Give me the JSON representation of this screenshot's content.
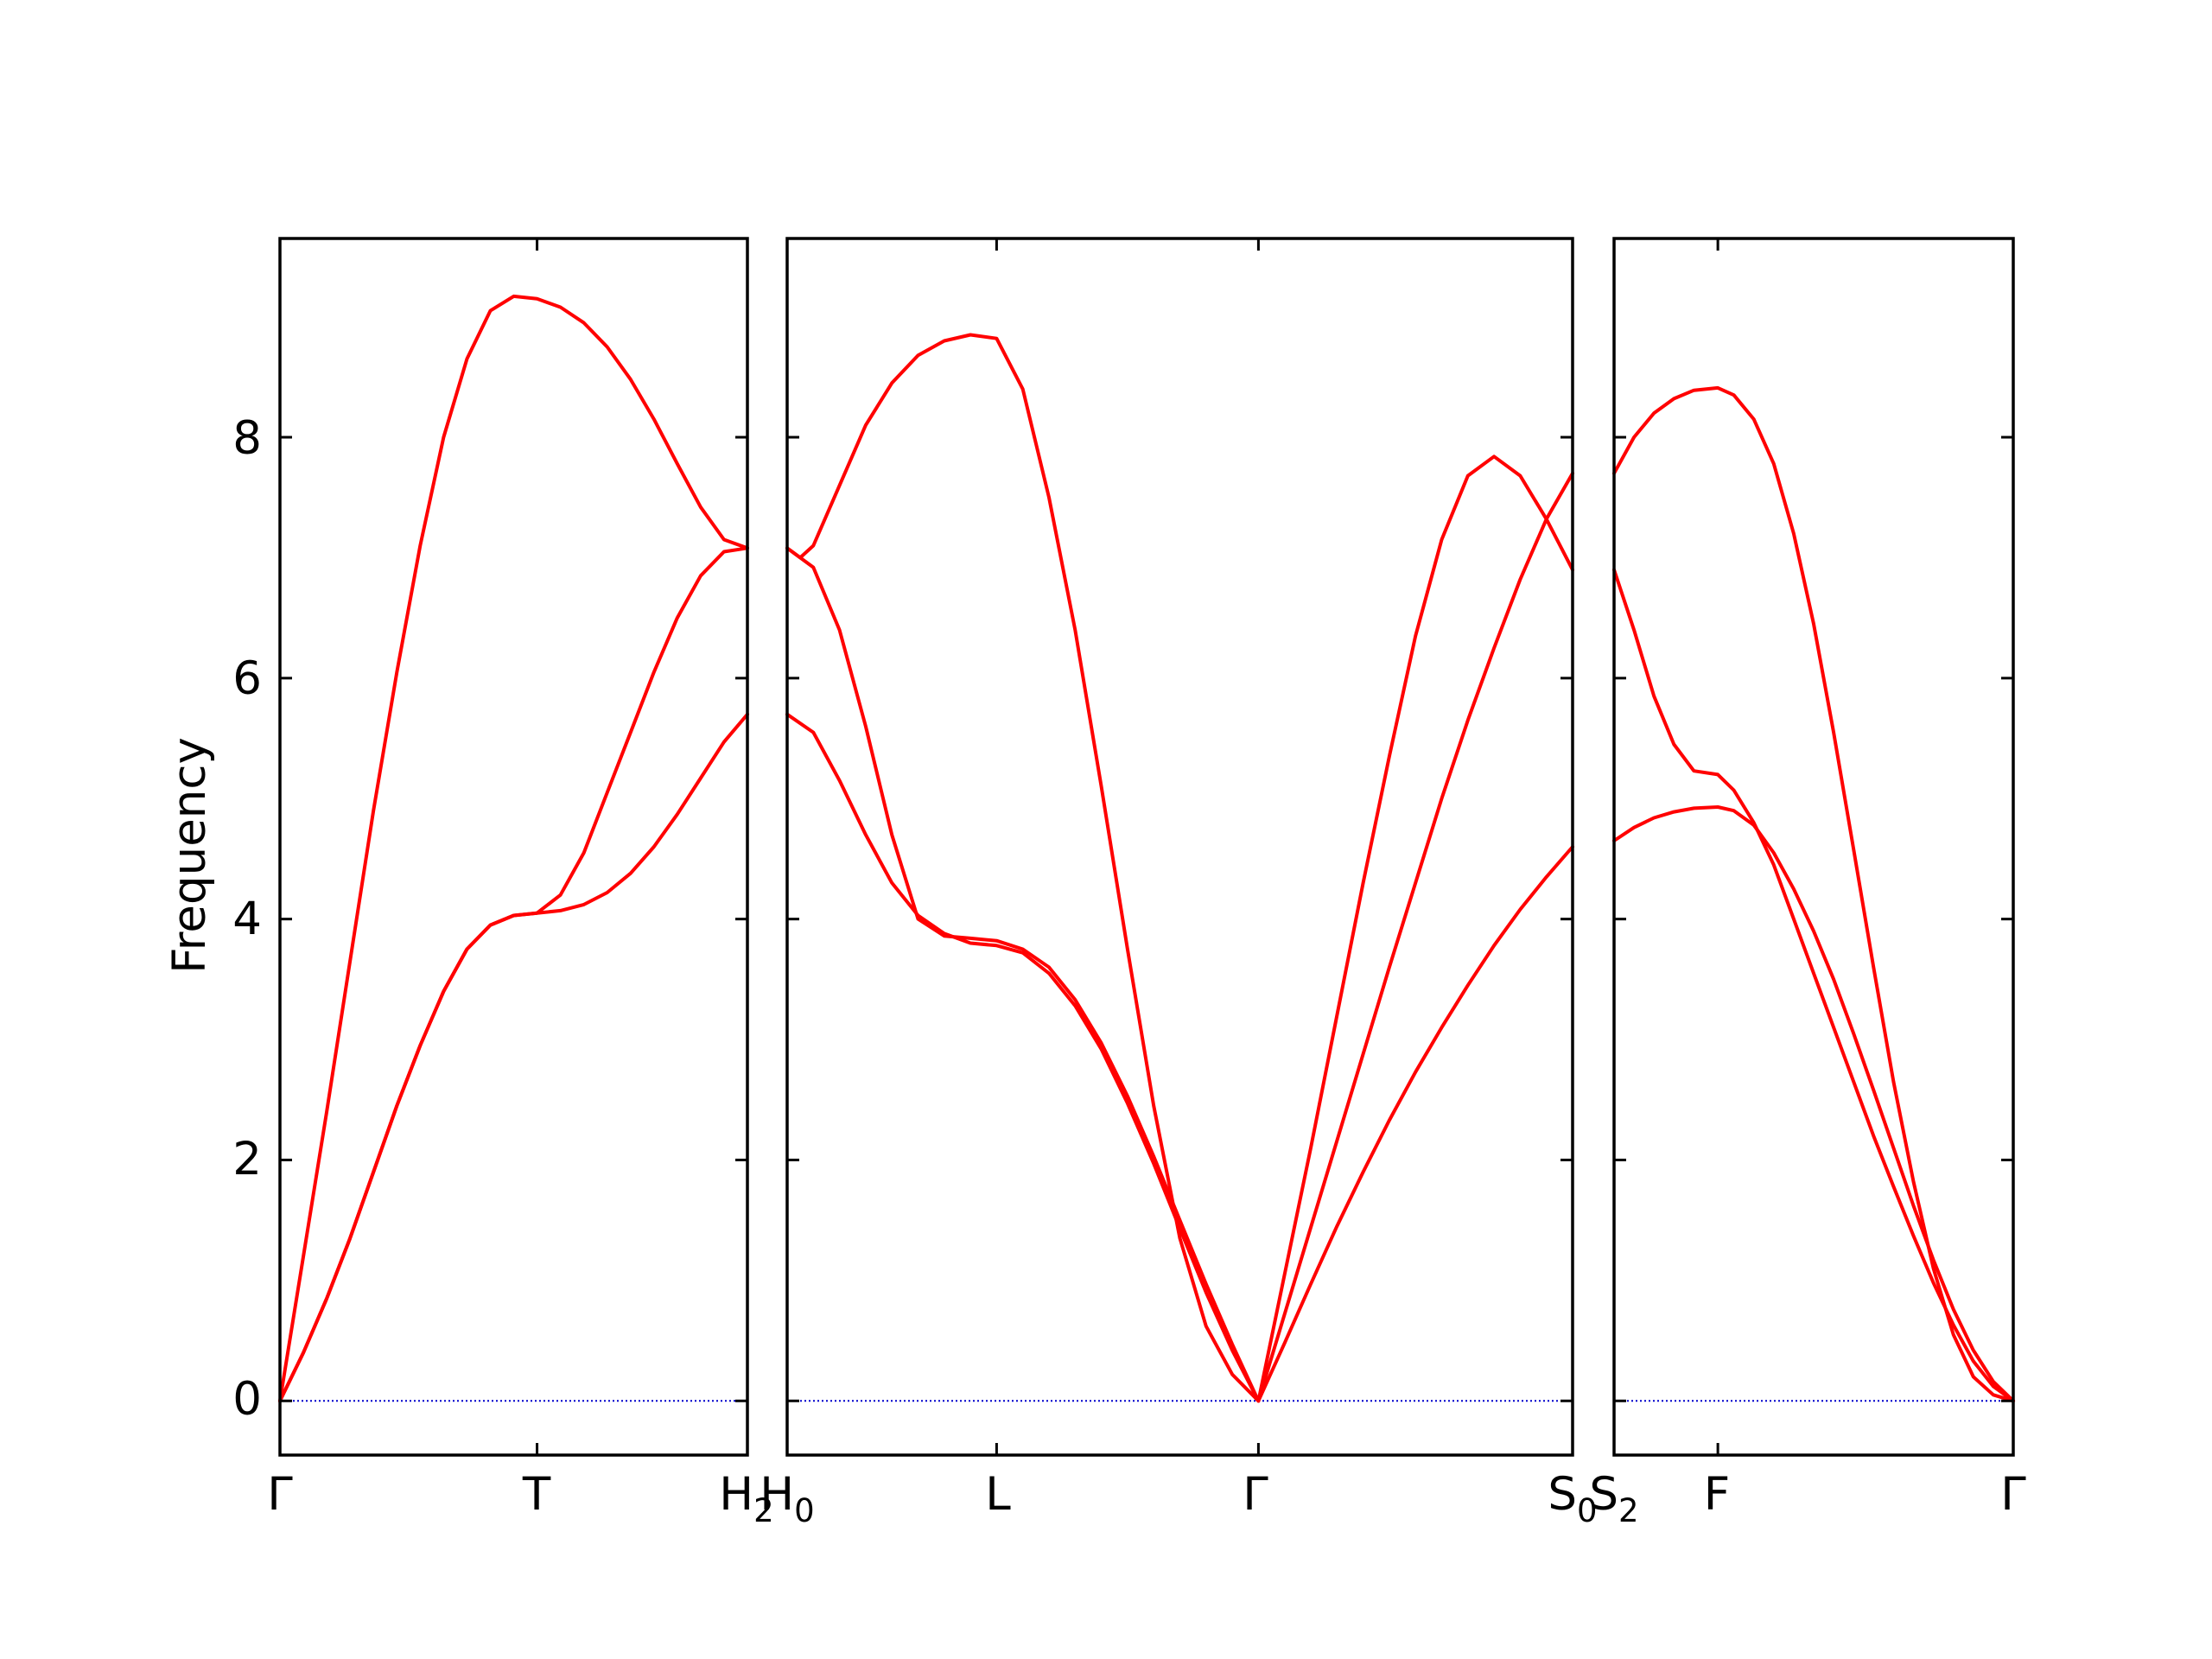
{
  "chart_data": {
    "type": "line",
    "ylabel": "Frequency",
    "ylim": [
      -0.45,
      9.65
    ],
    "yticks": [
      "0",
      "2",
      "4",
      "6",
      "8"
    ],
    "colors": {
      "band": "#ff0000",
      "zero_line": "#0000cc"
    },
    "labels": {
      "gamma_left": "Γ",
      "T": "T",
      "H_base": "H",
      "H_sub": "2",
      "H0_base": "H",
      "H0_sub": "0",
      "L": "L",
      "gamma_mid": "Γ",
      "S0_base": "S",
      "S0_sub": "0",
      "S2_base": "S",
      "S2_sub": "2",
      "F": "F",
      "gamma_right": "Γ"
    },
    "panels": [
      {
        "name": "Γ–T–H2",
        "xlim": [
          0,
          1
        ],
        "xticks": [
          0,
          0.55,
          1
        ],
        "series": [
          {
            "x": [
              0,
              0.05,
              0.1,
              0.15,
              0.2,
              0.25,
              0.3,
              0.35,
              0.4,
              0.45,
              0.5,
              0.55,
              0.6,
              0.65,
              0.7,
              0.75,
              0.8,
              0.85,
              0.9,
              0.95,
              1.0
            ],
            "y": [
              0,
              0.4,
              0.85,
              1.35,
              1.9,
              2.45,
              2.95,
              3.4,
              3.75,
              3.95,
              4.03,
              4.05,
              4.07,
              4.12,
              4.22,
              4.38,
              4.6,
              4.87,
              5.17,
              5.47,
              5.7
            ]
          },
          {
            "x": [
              0,
              0.05,
              0.1,
              0.15,
              0.2,
              0.25,
              0.3,
              0.35,
              0.4,
              0.45,
              0.5,
              0.55,
              0.6,
              0.65,
              0.7,
              0.75,
              0.8,
              0.85,
              0.9,
              0.95,
              1.0
            ],
            "y": [
              0,
              0.4,
              0.85,
              1.35,
              1.9,
              2.45,
              2.95,
              3.4,
              3.75,
              3.95,
              4.03,
              4.05,
              4.2,
              4.55,
              5.05,
              5.55,
              6.05,
              6.5,
              6.85,
              7.05,
              7.08
            ]
          },
          {
            "x": [
              0,
              0.05,
              0.1,
              0.15,
              0.2,
              0.25,
              0.3,
              0.35,
              0.4,
              0.45,
              0.5,
              0.55,
              0.6,
              0.65,
              0.7,
              0.75,
              0.8,
              0.85,
              0.9,
              0.95,
              1.0
            ],
            "y": [
              0,
              1.2,
              2.4,
              3.65,
              4.9,
              6.05,
              7.1,
              8.0,
              8.65,
              9.05,
              9.17,
              9.15,
              9.08,
              8.95,
              8.75,
              8.48,
              8.15,
              7.78,
              7.42,
              7.15,
              7.08
            ]
          }
        ]
      },
      {
        "name": "H0–L–Γ–S0",
        "xlim": [
          0,
          3
        ],
        "xticks": [
          0,
          0.8,
          1.8,
          3
        ],
        "series": [
          {
            "x": [
              0,
              0.1,
              0.2,
              0.3,
              0.4,
              0.5,
              0.6,
              0.7,
              0.8,
              0.9,
              1.0,
              1.1,
              1.2,
              1.3,
              1.4,
              1.5,
              1.6,
              1.7,
              1.8
            ],
            "y": [
              5.7,
              5.55,
              5.15,
              4.7,
              4.3,
              4.03,
              3.88,
              3.8,
              3.78,
              3.72,
              3.55,
              3.28,
              2.92,
              2.47,
              1.97,
              1.43,
              0.9,
              0.42,
              0
            ]
          },
          {
            "x": [
              0,
              0.1,
              0.2,
              0.3,
              0.4,
              0.5,
              0.6,
              0.7,
              0.8,
              0.9,
              1.0,
              1.1,
              1.2,
              1.3,
              1.4,
              1.5,
              1.6,
              1.7,
              1.8
            ],
            "y": [
              7.08,
              6.92,
              6.4,
              5.6,
              4.7,
              4.0,
              3.86,
              3.84,
              3.82,
              3.75,
              3.6,
              3.33,
              2.97,
              2.53,
              2.03,
              1.5,
              0.97,
              0.47,
              0
            ]
          },
          {
            "x": [
              0,
              0.05,
              0.1,
              0.2,
              0.3,
              0.4,
              0.5,
              0.6,
              0.7,
              0.8,
              0.9,
              1.0,
              1.1,
              1.2,
              1.3,
              1.4,
              1.5,
              1.6,
              1.7,
              1.8
            ],
            "y": [
              7.08,
              7.0,
              7.1,
              7.6,
              8.1,
              8.45,
              8.68,
              8.8,
              8.85,
              8.82,
              8.4,
              7.5,
              6.4,
              5.1,
              3.75,
              2.45,
              1.35,
              0.62,
              0.22,
              0
            ]
          },
          {
            "x": [
              1.8,
              1.9,
              2.0,
              2.1,
              2.2,
              2.3,
              2.4,
              2.5,
              2.6,
              2.7,
              2.8,
              2.9,
              3.0
            ],
            "y": [
              0,
              0.48,
              0.97,
              1.45,
              1.9,
              2.33,
              2.73,
              3.1,
              3.45,
              3.78,
              4.08,
              4.35,
              4.6
            ]
          },
          {
            "x": [
              1.8,
              1.9,
              2.0,
              2.1,
              2.2,
              2.3,
              2.4,
              2.5,
              2.6,
              2.7,
              2.8,
              2.9,
              3.0
            ],
            "y": [
              0,
              0.72,
              1.44,
              2.16,
              2.88,
              3.6,
              4.3,
              5.0,
              5.65,
              6.25,
              6.82,
              7.32,
              7.7
            ]
          },
          {
            "x": [
              1.8,
              1.9,
              2.0,
              2.1,
              2.2,
              2.3,
              2.4,
              2.5,
              2.6,
              2.7,
              2.8,
              2.9,
              3.0
            ],
            "y": [
              0,
              1.05,
              2.1,
              3.2,
              4.3,
              5.35,
              6.35,
              7.15,
              7.68,
              7.84,
              7.68,
              7.32,
              6.9
            ]
          }
        ]
      },
      {
        "name": "S2–F–Γ",
        "xlim": [
          0,
          1
        ],
        "xticks": [
          0,
          0.26,
          1
        ],
        "series": [
          {
            "x": [
              0,
              0.05,
              0.1,
              0.15,
              0.2,
              0.26,
              0.3,
              0.35,
              0.4,
              0.45,
              0.5,
              0.55,
              0.6,
              0.65,
              0.7,
              0.75,
              0.8,
              0.85,
              0.9,
              0.95,
              1.0
            ],
            "y": [
              4.65,
              4.76,
              4.84,
              4.89,
              4.92,
              4.93,
              4.9,
              4.78,
              4.55,
              4.25,
              3.9,
              3.5,
              3.05,
              2.58,
              2.1,
              1.62,
              1.17,
              0.76,
              0.42,
              0.16,
              0
            ]
          },
          {
            "x": [
              0,
              0.05,
              0.1,
              0.15,
              0.2,
              0.26,
              0.3,
              0.35,
              0.4,
              0.45,
              0.5,
              0.55,
              0.6,
              0.65,
              0.7,
              0.75,
              0.8,
              0.85,
              0.9,
              0.95,
              1.0
            ],
            "y": [
              6.9,
              6.4,
              5.85,
              5.45,
              5.23,
              5.2,
              5.07,
              4.8,
              4.45,
              4.0,
              3.55,
              3.1,
              2.65,
              2.2,
              1.78,
              1.37,
              0.98,
              0.63,
              0.33,
              0.12,
              0
            ]
          },
          {
            "x": [
              0,
              0.05,
              0.1,
              0.15,
              0.2,
              0.26,
              0.3,
              0.35,
              0.4,
              0.45,
              0.5,
              0.55,
              0.6,
              0.65,
              0.7,
              0.75,
              0.8,
              0.85,
              0.9,
              0.95,
              1.0
            ],
            "y": [
              7.7,
              8.0,
              8.2,
              8.32,
              8.39,
              8.41,
              8.35,
              8.15,
              7.78,
              7.2,
              6.45,
              5.55,
              4.58,
              3.6,
              2.65,
              1.82,
              1.1,
              0.55,
              0.2,
              0.05,
              0
            ]
          }
        ]
      }
    ]
  }
}
